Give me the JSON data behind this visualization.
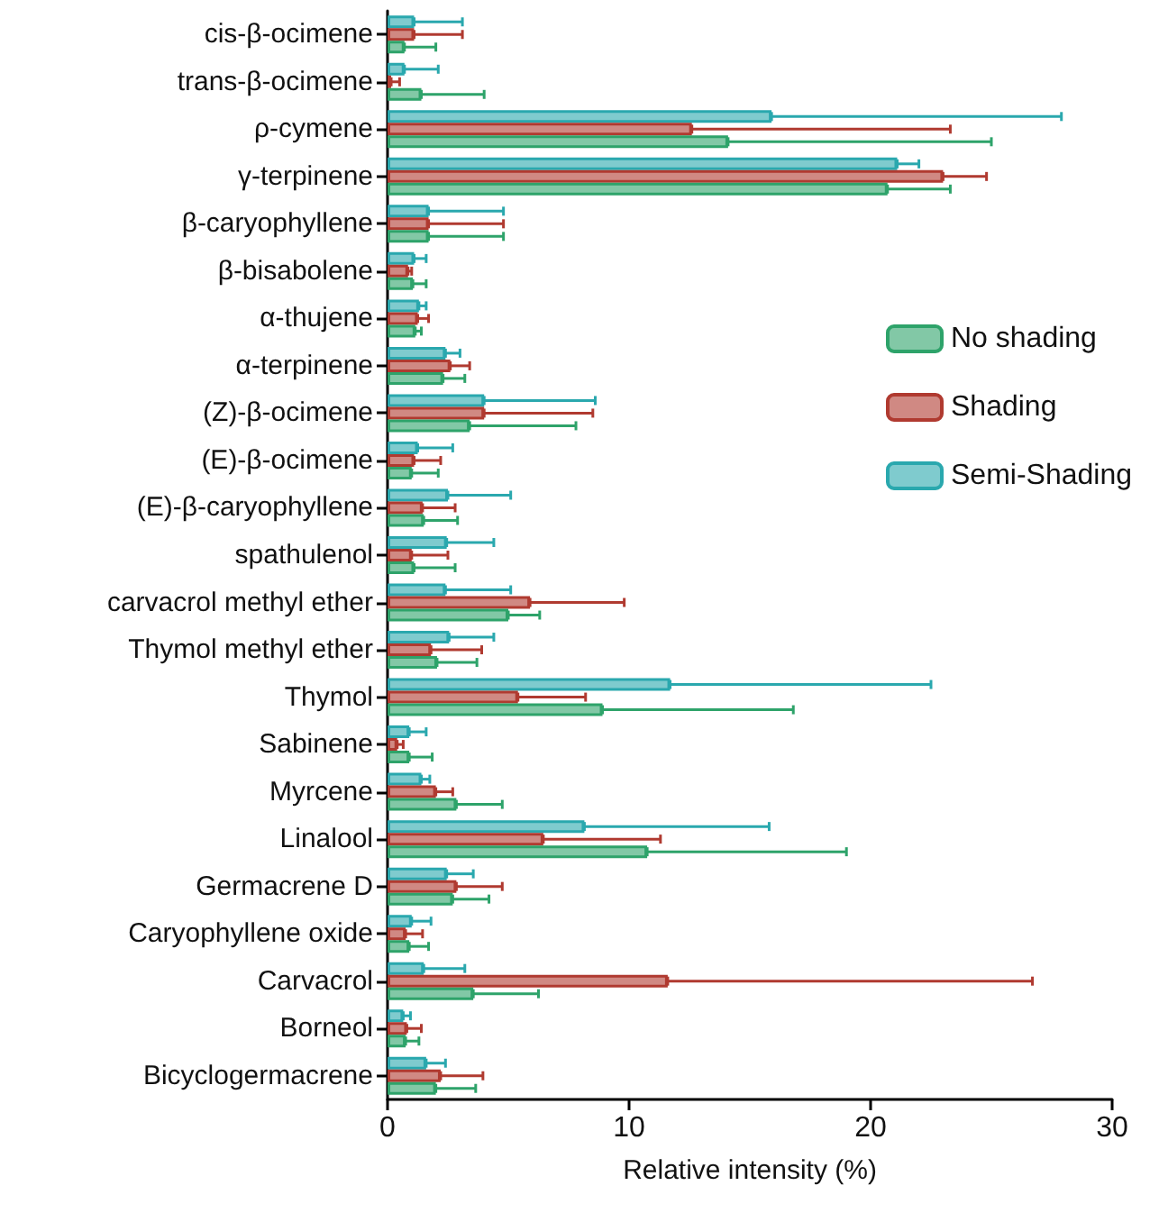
{
  "chart_data": {
    "type": "bar",
    "orientation": "horizontal",
    "xlabel": "Relative intensity (%)",
    "xlim": [
      0,
      30
    ],
    "xticks": [
      0,
      10,
      20,
      30
    ],
    "grid": false,
    "legend": "right",
    "categories": [
      "cis-β-ocimene",
      "trans-β-ocimene",
      "ρ-cymene",
      "γ-terpinene",
      "β-caryophyllene",
      "β-bisabolene",
      "α-thujene",
      "α-terpinene",
      "(Z)-β-ocimene",
      "(E)-β-ocimene",
      "(E)-β-caryophyllene",
      "spathulenol",
      "carvacrol methyl ether",
      "Thymol methyl ether",
      "Thymol",
      "Sabinene",
      "Myrcene",
      "Linalool",
      "Germacrene D",
      "Caryophyllene oxide",
      "Carvacrol",
      "Borneol",
      "Bicyclogermacrene"
    ],
    "series": [
      {
        "name": "No shading",
        "color": "#2ea36a",
        "values": [
          0.7,
          1.4,
          14.1,
          20.7,
          1.7,
          1.05,
          1.15,
          2.3,
          3.4,
          1.0,
          1.5,
          1.1,
          5.0,
          2.05,
          8.9,
          0.9,
          2.85,
          10.75,
          2.7,
          0.9,
          3.55,
          0.75,
          2.0
        ],
        "errors": [
          [
            0.7,
            2.0
          ],
          [
            1.4,
            4.0
          ],
          [
            14.1,
            25.0
          ],
          [
            20.7,
            23.3
          ],
          [
            1.7,
            4.8
          ],
          [
            1.05,
            1.6
          ],
          [
            1.15,
            1.4
          ],
          [
            2.3,
            3.2
          ],
          [
            3.4,
            7.8
          ],
          [
            1.0,
            2.1
          ],
          [
            1.5,
            2.9
          ],
          [
            1.1,
            2.8
          ],
          [
            5.0,
            6.3
          ],
          [
            2.05,
            3.7
          ],
          [
            8.9,
            16.8
          ],
          [
            0.9,
            1.85
          ],
          [
            2.85,
            4.75
          ],
          [
            10.75,
            19.0
          ],
          [
            2.7,
            4.2
          ],
          [
            0.9,
            1.7
          ],
          [
            3.55,
            6.25
          ],
          [
            0.75,
            1.3
          ],
          [
            2.0,
            3.65
          ]
        ]
      },
      {
        "name": "Shading",
        "color": "#b03a30",
        "values": [
          1.1,
          0.15,
          12.6,
          23.0,
          1.7,
          0.85,
          1.25,
          2.6,
          4.0,
          1.1,
          1.45,
          1.0,
          5.9,
          1.8,
          5.4,
          0.4,
          2.0,
          6.45,
          2.85,
          0.75,
          11.6,
          0.8,
          2.2
        ],
        "errors": [
          [
            1.1,
            3.1
          ],
          [
            0.15,
            0.5
          ],
          [
            12.6,
            23.3
          ],
          [
            23.0,
            24.8
          ],
          [
            1.7,
            4.8
          ],
          [
            0.85,
            1.0
          ],
          [
            1.25,
            1.7
          ],
          [
            2.6,
            3.4
          ],
          [
            4.0,
            8.5
          ],
          [
            1.1,
            2.2
          ],
          [
            1.45,
            2.8
          ],
          [
            1.0,
            2.5
          ],
          [
            5.9,
            9.8
          ],
          [
            1.8,
            3.9
          ],
          [
            5.4,
            8.2
          ],
          [
            0.4,
            0.65
          ],
          [
            2.0,
            2.7
          ],
          [
            6.45,
            11.3
          ],
          [
            2.85,
            4.75
          ],
          [
            0.75,
            1.45
          ],
          [
            11.6,
            26.7
          ],
          [
            0.8,
            1.4
          ],
          [
            2.2,
            3.95
          ]
        ]
      },
      {
        "name": "Semi-Shading",
        "color": "#2aa8ae",
        "values": [
          1.1,
          0.7,
          15.9,
          21.1,
          1.7,
          1.1,
          1.3,
          2.4,
          4.0,
          1.25,
          2.5,
          2.45,
          2.4,
          2.55,
          11.7,
          0.9,
          1.4,
          8.15,
          2.45,
          1.0,
          1.5,
          0.65,
          1.6
        ],
        "errors": [
          [
            1.1,
            3.1
          ],
          [
            0.7,
            2.1
          ],
          [
            15.9,
            27.9
          ],
          [
            21.1,
            22.0
          ],
          [
            1.7,
            4.8
          ],
          [
            1.1,
            1.6
          ],
          [
            1.3,
            1.6
          ],
          [
            2.4,
            3.0
          ],
          [
            4.0,
            8.6
          ],
          [
            1.25,
            2.7
          ],
          [
            2.5,
            5.1
          ],
          [
            2.45,
            4.4
          ],
          [
            2.4,
            5.1
          ],
          [
            2.55,
            4.4
          ],
          [
            11.7,
            22.5
          ],
          [
            0.9,
            1.6
          ],
          [
            1.4,
            1.75
          ],
          [
            8.15,
            15.8
          ],
          [
            2.45,
            3.55
          ],
          [
            1.0,
            1.8
          ],
          [
            1.5,
            3.2
          ],
          [
            0.65,
            0.95
          ],
          [
            1.6,
            2.4
          ]
        ]
      }
    ]
  }
}
